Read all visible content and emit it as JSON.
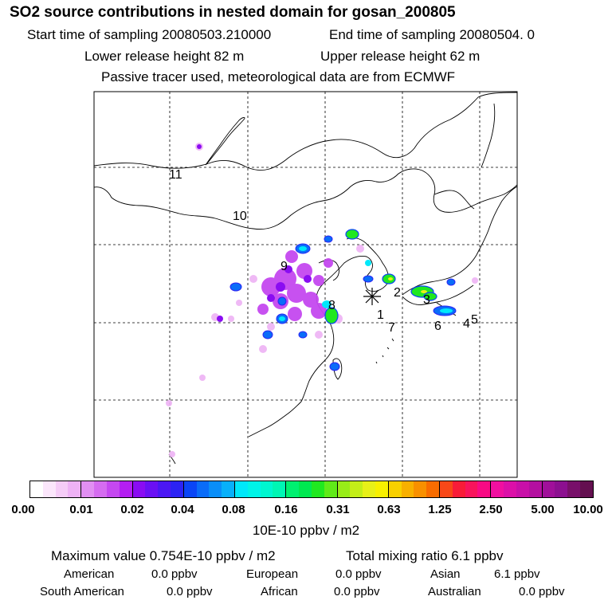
{
  "header": {
    "title": "SO2 source contributions in nested domain for gosan_200805",
    "start_time": "Start time of sampling 20080503.210000",
    "end_time": "End time of sampling 20080504.     0",
    "lower_height": "Lower release height   82 m",
    "upper_height": "Upper release height   62 m",
    "tracer_note": "Passive tracer used, meteorological data are from ECMWF"
  },
  "map": {
    "region_labels": [
      "1",
      "2",
      "3",
      "4",
      "5",
      "6",
      "7",
      "8",
      "9",
      "10",
      "11"
    ],
    "receptor_symbol": "*"
  },
  "colorbar": {
    "ticks": [
      "0.00",
      "0.01",
      "0.02",
      "0.04",
      "0.08",
      "0.16",
      "0.31",
      "0.63",
      "1.25",
      "2.50",
      "5.00",
      "10.00"
    ],
    "unit": "10E-10 ppbv / m2",
    "colors": [
      "#ffffff",
      "#fbe6fb",
      "#f5ccf7",
      "#eeb2f5",
      "#e18ff2",
      "#d56cf0",
      "#c548f0",
      "#b41ef2",
      "#8a0cf2",
      "#6a10f4",
      "#4b17f4",
      "#2c23f4",
      "#0a45f6",
      "#0a6cf8",
      "#0a8ef8",
      "#08b0fa",
      "#00e8fa",
      "#00f4e8",
      "#00f6d0",
      "#00f6b4",
      "#00f070",
      "#00e850",
      "#20e820",
      "#60ea18",
      "#98ec18",
      "#c4ee18",
      "#e8f018",
      "#f8f000",
      "#f8d000",
      "#f8b000",
      "#f89000",
      "#f86c00",
      "#f84818",
      "#f81c38",
      "#f8145c",
      "#f80a84",
      "#f010a0",
      "#dc10a8",
      "#c810a8",
      "#b410a0",
      "#a0109a",
      "#8c1090",
      "#78106a",
      "#641050"
    ]
  },
  "footer": {
    "max_value": "Maximum value  0.754E-10 ppbv / m2",
    "total_mixing": "Total mixing ratio       6.1 ppbv",
    "american_label": "American",
    "american_value": "0.0 ppbv",
    "european_label": "European",
    "european_value": "0.0 ppbv",
    "asian_label": "Asian",
    "asian_value": "6.1 ppbv",
    "south_american_label": "South American",
    "south_american_value": "0.0 ppbv",
    "african_label": "African",
    "african_value": "0.0 ppbv",
    "australian_label": "Australian",
    "australian_value": "0.0 ppbv"
  }
}
